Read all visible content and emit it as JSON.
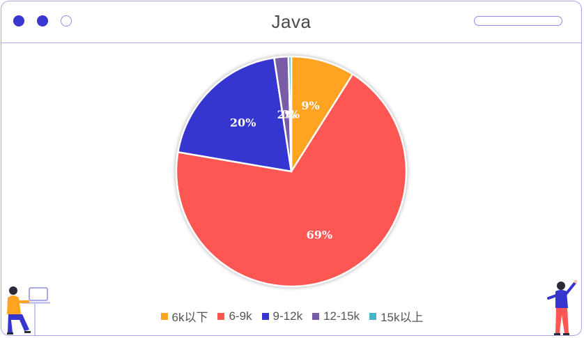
{
  "window": {
    "title": "Java",
    "colors": {
      "frame": "#a9a6ee",
      "dot": "#3a36d0"
    }
  },
  "chart_data": {
    "type": "pie",
    "categories": [
      "6k以下",
      "6-9k",
      "9-12k",
      "12-15k",
      "15k以上"
    ],
    "values": [
      9,
      69,
      20,
      2,
      0.4
    ],
    "data_labels": [
      "9%",
      "69%",
      "20%",
      "2%",
      "0%"
    ],
    "colors": [
      "#ffa321",
      "#fe5753",
      "#3635cf",
      "#7a5ca6",
      "#48b4c9"
    ],
    "legend_position": "bottom"
  },
  "decorations": {
    "left_figure": "person-at-laptop-illustration",
    "right_figure": "waving-person-illustration"
  }
}
